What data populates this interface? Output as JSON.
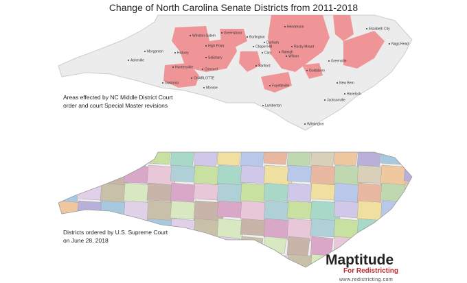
{
  "title": "Change of North Carolina Senate Districts from 2011-2018",
  "top_map": {
    "caption": [
      "Areas effected by NC Middle District Court",
      "order and court Special Master revisions"
    ],
    "cities": [
      "Winston-Salem",
      "Greensboro",
      "Burlington",
      "Henderson",
      "Elizabeth City",
      "Nags Head",
      "Durham",
      "Chapel Hill",
      "Raleigh",
      "Cary",
      "Rocky Mount",
      "Wilson",
      "Greenville",
      "High Point",
      "Salisbury",
      "Hickory",
      "Morganton",
      "Asheville",
      "Huntersville",
      "Concord",
      "Gastonia",
      "CHARLOTTE",
      "Monroe",
      "Sanford",
      "Fayetteville",
      "Goldsboro",
      "New Bern",
      "Havelock",
      "Jacksonville",
      "Lumberton",
      "Wilmington"
    ]
  },
  "bottom_map": {
    "caption": [
      "Districts ordered by U.S. Supreme Court",
      "on June 28, 2018"
    ]
  },
  "logo": {
    "name": "Maptitude",
    "tagline": "For Redistricting",
    "url": "www.redistricting.com"
  }
}
